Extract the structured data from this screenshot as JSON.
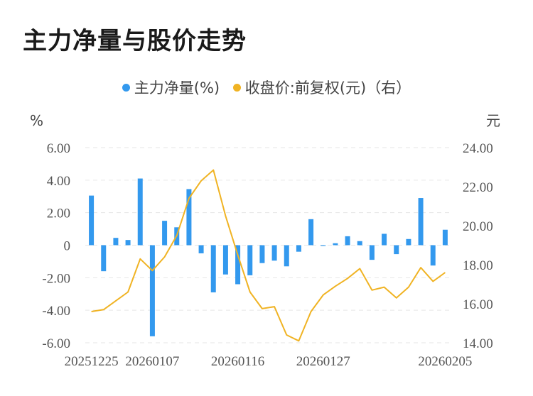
{
  "title": "主力净量与股价走势",
  "legend": {
    "bar_label": "主力净量(%)",
    "line_label": "收盘价:前复权(元)（右）"
  },
  "colors": {
    "bar": "#3399ee",
    "line": "#f0b323"
  },
  "chart_data": {
    "type": "bar+line",
    "left_unit": "%",
    "right_unit": "元",
    "left_ticks": [
      "6.00",
      "4.00",
      "2.00",
      "0",
      "-2.00",
      "-4.00",
      "-6.00"
    ],
    "right_ticks": [
      "24.00",
      "22.00",
      "20.00",
      "18.00",
      "16.00",
      "14.00"
    ],
    "left_range": [
      -6,
      6
    ],
    "right_range": [
      14,
      24
    ],
    "x_tick_labels": [
      {
        "index": 0,
        "label": "20251225"
      },
      {
        "index": 5,
        "label": "20260107"
      },
      {
        "index": 12,
        "label": "20260116"
      },
      {
        "index": 19,
        "label": "20260127"
      },
      {
        "index": 29,
        "label": "20260205"
      }
    ],
    "series": [
      {
        "name": "主力净量(%)",
        "type": "bar",
        "axis": "left",
        "values": [
          3.05,
          -1.6,
          0.45,
          0.32,
          4.1,
          -5.6,
          1.5,
          1.1,
          3.45,
          -0.5,
          -2.9,
          -1.8,
          -2.4,
          -1.85,
          -1.1,
          -0.95,
          -1.3,
          -0.4,
          1.6,
          -0.05,
          0.12,
          0.55,
          0.25,
          -0.9,
          0.7,
          -0.55,
          0.38,
          2.9,
          -1.25,
          0.95
        ]
      },
      {
        "name": "收盘价:前复权(元)（右）",
        "type": "line",
        "axis": "right",
        "values": [
          15.6,
          15.7,
          16.15,
          16.6,
          18.3,
          17.7,
          18.4,
          19.5,
          21.4,
          22.3,
          22.85,
          20.5,
          18.5,
          16.6,
          15.75,
          15.85,
          14.4,
          14.1,
          15.6,
          16.45,
          16.9,
          17.3,
          17.8,
          16.7,
          16.85,
          16.3,
          16.85,
          17.85,
          17.15,
          17.6
        ]
      }
    ]
  }
}
